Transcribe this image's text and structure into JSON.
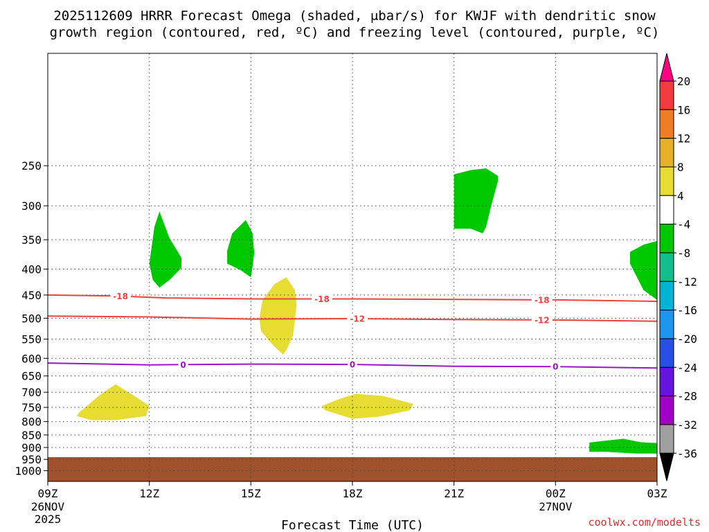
{
  "chart_data": {
    "type": "heatmap",
    "title_line1": "2025112609 HRRR Forecast Omega (shaded, μbar/s) for KWJF with dendritic snow",
    "title_line2": "growth region (contoured, red, ºC) and freezing level (contoured, purple, ºC)",
    "xlabel": "Forecast Time (UTC)",
    "x_range_hours": [
      0,
      18
    ],
    "y_range_hpa": [
      1050,
      150
    ],
    "y_scale": "log-pressure",
    "grid": true,
    "x_ticks": [
      {
        "hour": 0,
        "label": "09Z",
        "date1": "26NOV",
        "date2": "2025"
      },
      {
        "hour": 3,
        "label": "12Z",
        "date1": "",
        "date2": ""
      },
      {
        "hour": 6,
        "label": "15Z",
        "date1": "",
        "date2": ""
      },
      {
        "hour": 9,
        "label": "18Z",
        "date1": "",
        "date2": ""
      },
      {
        "hour": 12,
        "label": "21Z",
        "date1": "",
        "date2": ""
      },
      {
        "hour": 15,
        "label": "00Z",
        "date1": "27NOV",
        "date2": ""
      },
      {
        "hour": 18,
        "label": "03Z",
        "date1": "",
        "date2": ""
      }
    ],
    "y_ticks": [
      250,
      300,
      350,
      400,
      450,
      500,
      550,
      600,
      650,
      700,
      750,
      800,
      850,
      900,
      950,
      1000
    ],
    "colorbar": {
      "labels": [
        "20",
        "16",
        "12",
        "8",
        "4",
        "-4",
        "-8",
        "-12",
        "-16",
        "-20",
        "-24",
        "-28",
        "-32",
        "-36"
      ],
      "colors": [
        "#ff0080",
        "#f03c3c",
        "#f07c28",
        "#e6b028",
        "#e6dc32",
        "#ffffff",
        "#00c800",
        "#14be8c",
        "#00b4d2",
        "#1e96f0",
        "#2850e6",
        "#6414dc",
        "#a000c8",
        "#a0a0a0",
        "#000000"
      ]
    },
    "omega_regions": [
      {
        "color": "#e6dc32",
        "points": [
          [
            0.95,
            765
          ],
          [
            1.55,
            708
          ],
          [
            2.0,
            675
          ],
          [
            2.6,
            715
          ],
          [
            3.0,
            745
          ],
          [
            2.9,
            780
          ],
          [
            2.0,
            795
          ],
          [
            1.3,
            795
          ],
          [
            0.85,
            780
          ]
        ]
      },
      {
        "color": "#00c800",
        "points": [
          [
            3.0,
            390
          ],
          [
            3.15,
            330
          ],
          [
            3.3,
            308
          ],
          [
            3.6,
            348
          ],
          [
            3.95,
            380
          ],
          [
            3.95,
            398
          ],
          [
            3.6,
            420
          ],
          [
            3.3,
            435
          ],
          [
            3.1,
            420
          ]
        ]
      },
      {
        "color": "#00c800",
        "points": [
          [
            5.3,
            368
          ],
          [
            5.45,
            340
          ],
          [
            5.85,
            320
          ],
          [
            6.05,
            340
          ],
          [
            6.1,
            372
          ],
          [
            6.05,
            395
          ],
          [
            6.0,
            415
          ],
          [
            5.7,
            402
          ],
          [
            5.3,
            390
          ]
        ]
      },
      {
        "color": "#e6dc32",
        "points": [
          [
            6.25,
            500
          ],
          [
            6.35,
            460
          ],
          [
            6.7,
            428
          ],
          [
            7.05,
            415
          ],
          [
            7.3,
            440
          ],
          [
            7.35,
            470
          ],
          [
            7.25,
            540
          ],
          [
            7.05,
            578
          ],
          [
            6.95,
            590
          ],
          [
            6.6,
            560
          ],
          [
            6.3,
            530
          ]
        ]
      },
      {
        "color": "#e6dc32",
        "points": [
          [
            8.1,
            745
          ],
          [
            8.6,
            722
          ],
          [
            9.1,
            705
          ],
          [
            9.9,
            712
          ],
          [
            10.8,
            738
          ],
          [
            10.7,
            760
          ],
          [
            9.8,
            782
          ],
          [
            9.0,
            790
          ],
          [
            8.2,
            760
          ]
        ]
      },
      {
        "color": "#00c800",
        "points": [
          [
            12.0,
            260
          ],
          [
            12.5,
            255
          ],
          [
            12.95,
            253
          ],
          [
            13.3,
            262
          ],
          [
            13.3,
            268
          ],
          [
            13.1,
            300
          ],
          [
            12.95,
            330
          ],
          [
            12.85,
            340
          ],
          [
            12.5,
            333
          ],
          [
            12.0,
            333
          ]
        ]
      },
      {
        "color": "#00c800",
        "points": [
          [
            17.2,
            370
          ],
          [
            17.6,
            358
          ],
          [
            18.0,
            352
          ],
          [
            18.0,
            460
          ],
          [
            17.6,
            440
          ],
          [
            17.2,
            390
          ]
        ]
      },
      {
        "color": "#00c800",
        "points": [
          [
            16.0,
            880
          ],
          [
            16.5,
            872
          ],
          [
            17.0,
            865
          ],
          [
            17.5,
            878
          ],
          [
            18.0,
            882
          ],
          [
            18.0,
            925
          ],
          [
            17.4,
            925
          ],
          [
            16.5,
            918
          ],
          [
            16.0,
            918
          ]
        ]
      }
    ],
    "ground": {
      "color": "#a0522d",
      "top_hpa": 940,
      "label": ""
    },
    "contours": [
      {
        "label": "-18",
        "color": "#f04040",
        "points": [
          [
            0,
            450
          ],
          [
            2.0,
            452
          ],
          [
            3.5,
            456
          ],
          [
            6,
            458
          ],
          [
            9,
            458
          ],
          [
            12,
            459
          ],
          [
            15,
            460
          ],
          [
            18,
            463
          ]
        ],
        "label_hours": [
          2.15,
          8.1,
          14.6
        ]
      },
      {
        "label": "-12",
        "color": "#f04040",
        "points": [
          [
            0,
            495
          ],
          [
            3,
            497
          ],
          [
            6,
            502
          ],
          [
            9,
            501
          ],
          [
            12,
            503
          ],
          [
            15,
            504
          ],
          [
            18,
            507
          ]
        ],
        "label_hours": [
          9.15,
          14.6
        ]
      },
      {
        "label": "0",
        "color": "#9a14c8",
        "points": [
          [
            0,
            613
          ],
          [
            3,
            618
          ],
          [
            6,
            616
          ],
          [
            9,
            617
          ],
          [
            12,
            622
          ],
          [
            15,
            623
          ],
          [
            18,
            627
          ]
        ],
        "label_hours": [
          4.0,
          9.0,
          15.0
        ]
      }
    ],
    "credit": "coolwx.com/modelts"
  }
}
